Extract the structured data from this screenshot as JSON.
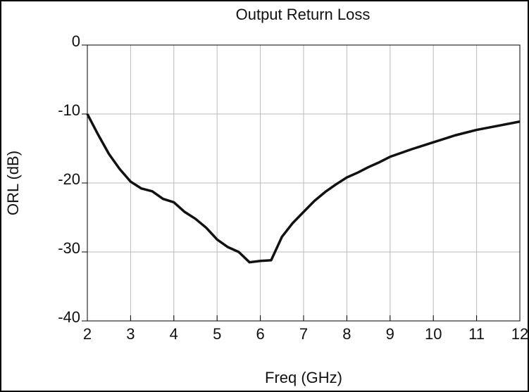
{
  "chart_data": {
    "type": "line",
    "title": "Output Return Loss",
    "xlabel": "Freq (GHz)",
    "ylabel": "ORL (dB)",
    "series": [
      {
        "name": null,
        "color": "#111111",
        "x": [
          2,
          2.25,
          2.5,
          2.75,
          3,
          3.25,
          3.5,
          3.75,
          4,
          4.25,
          4.5,
          4.75,
          5,
          5.25,
          5.5,
          5.75,
          6,
          6.25,
          6.5,
          6.75,
          7,
          7.25,
          7.5,
          7.75,
          8,
          8.25,
          8.5,
          8.75,
          9,
          9.5,
          10,
          10.5,
          11,
          11.5,
          12
        ],
        "values": [
          -10,
          -13,
          -15.8,
          -18,
          -19.8,
          -20.8,
          -21.2,
          -22.3,
          -22.8,
          -24.2,
          -25.2,
          -26.5,
          -28.2,
          -29.3,
          -30,
          -31.5,
          -31.3,
          -31.2,
          -27.8,
          -25.8,
          -24.2,
          -22.6,
          -21.3,
          -20.2,
          -19.2,
          -18.5,
          -17.7,
          -17,
          -16.2,
          -15.1,
          -14.1,
          -13.1,
          -12.3,
          -11.7,
          -11.1
        ]
      }
    ],
    "xlim": [
      2,
      12
    ],
    "xticks": [
      2,
      3,
      4,
      5,
      6,
      7,
      8,
      9,
      10,
      11,
      12
    ],
    "ylim": [
      -40,
      0
    ],
    "yticks": [
      -40,
      -30,
      -20,
      -10,
      0
    ],
    "grid": true
  }
}
